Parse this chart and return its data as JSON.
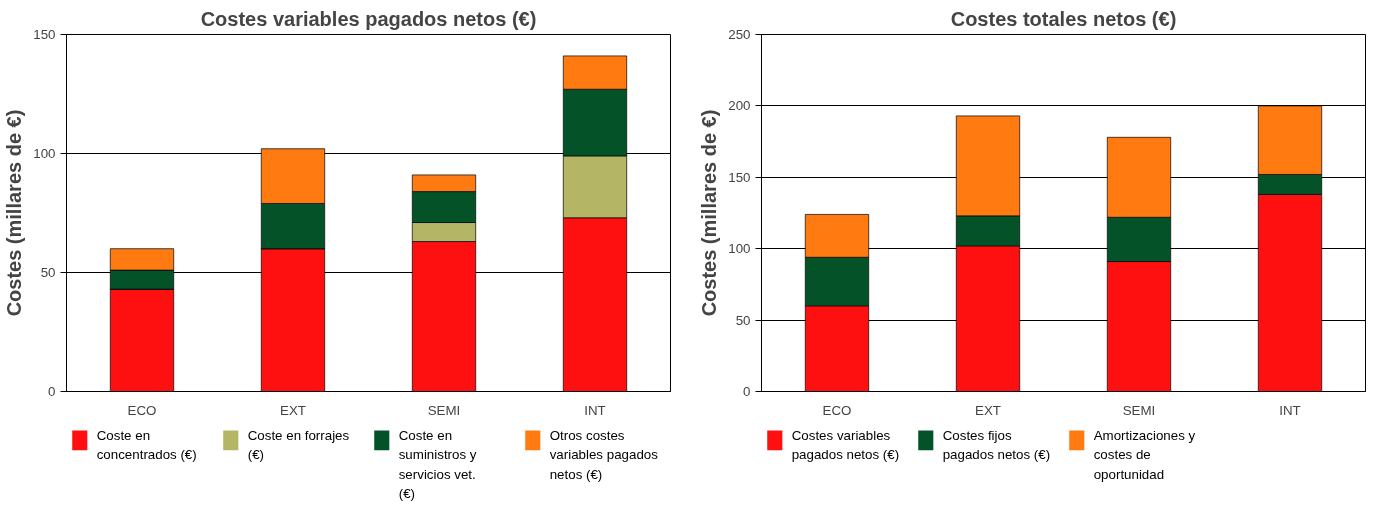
{
  "chart_data": [
    {
      "type": "bar",
      "stacked": true,
      "title": "Costes variables pagados netos (€)",
      "ylabel": "Costes (millares de €)",
      "categories": [
        "ECO",
        "EXT",
        "SEMI",
        "INT"
      ],
      "ylim": [
        0,
        150
      ],
      "yticks": [
        0,
        50,
        100,
        150
      ],
      "grid": "y",
      "legend": "bottom",
      "series": [
        {
          "name": "Coste en concentrados (€)",
          "color": "#ff1010",
          "values": [
            43,
            60,
            63,
            73
          ]
        },
        {
          "name": "Coste en forrajes (€)",
          "color": "#b5b566",
          "values": [
            0,
            0,
            8,
            26
          ]
        },
        {
          "name": "Coste en suministros y servicios vet. (€)",
          "color": "#045228",
          "values": [
            8,
            19,
            13,
            28
          ]
        },
        {
          "name": "Otros costes variables pagados netos (€)",
          "color": "#ff7a10",
          "values": [
            9,
            23,
            7,
            14
          ]
        }
      ]
    },
    {
      "type": "bar",
      "stacked": true,
      "title": "Costes totales netos (€)",
      "ylabel": "Costes (millares de €)",
      "categories": [
        "ECO",
        "EXT",
        "SEMI",
        "INT"
      ],
      "ylim": [
        0,
        250
      ],
      "yticks": [
        0,
        50,
        100,
        150,
        200,
        250
      ],
      "grid": "y",
      "legend": "bottom",
      "series": [
        {
          "name": "Costes variables pagados netos (€)",
          "color": "#ff1010",
          "values": [
            60,
            102,
            91,
            138
          ]
        },
        {
          "name": "Costes fijos pagados netos (€)",
          "color": "#045228",
          "values": [
            34,
            21,
            31,
            14
          ]
        },
        {
          "name": "Amortizaciones y costes de oportunidad",
          "color": "#ff7a10",
          "values": [
            30,
            70,
            56,
            48
          ]
        }
      ]
    }
  ]
}
